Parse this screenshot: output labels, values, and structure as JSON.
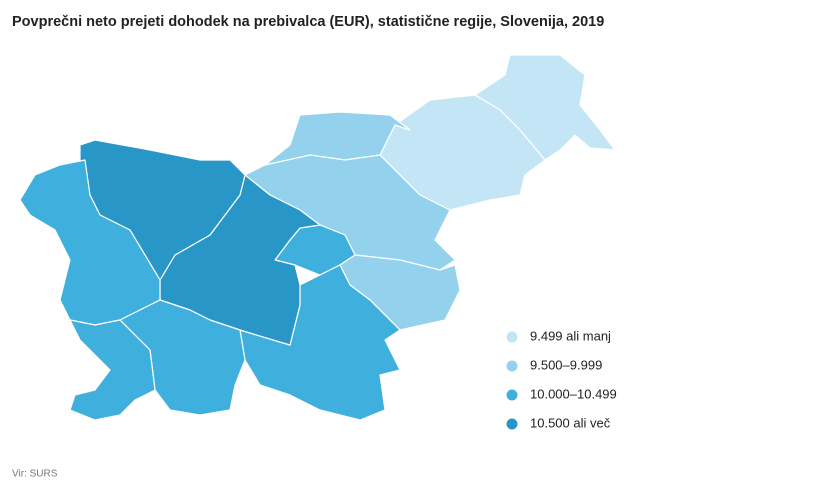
{
  "title": "Povprečni neto prejeti dohodek na prebivalca (EUR), statistične regije, Slovenija, 2019",
  "legend": [
    {
      "label": "9.499 ali manj",
      "color": "#c4e5f5"
    },
    {
      "label": "9.500–9.999",
      "color": "#93d1ec"
    },
    {
      "label": "10.000–10.499",
      "color": "#3fb0de"
    },
    {
      "label": "10.500 ali več",
      "color": "#2896c6"
    }
  ],
  "source": "Vir: SURS"
}
